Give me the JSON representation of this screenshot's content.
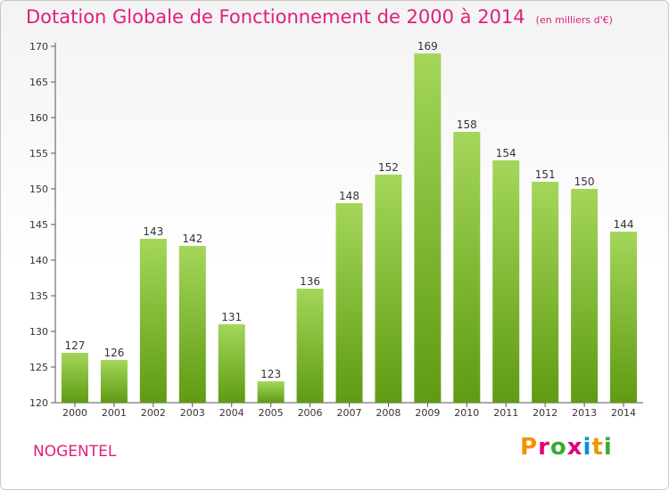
{
  "title": "Dotation Globale de Fonctionnement de 2000 à 2014",
  "unit": "(en milliers d'€)",
  "commune": "NOGENTEL",
  "logo_text": "Proxiti",
  "colors": {
    "title": "#e0207a",
    "bar_top": "#a4d65a",
    "bar_bottom": "#5f9b12"
  },
  "chart_data": {
    "type": "bar",
    "title": "Dotation Globale de Fonctionnement de 2000 à 2014",
    "xlabel": "",
    "ylabel": "",
    "ylim": [
      120,
      170
    ],
    "yticks": [
      120,
      125,
      130,
      135,
      140,
      145,
      150,
      155,
      160,
      165,
      170
    ],
    "grid": false,
    "categories": [
      "2000",
      "2001",
      "2002",
      "2003",
      "2004",
      "2005",
      "2006",
      "2007",
      "2008",
      "2009",
      "2010",
      "2011",
      "2012",
      "2013",
      "2014"
    ],
    "values": [
      127,
      126,
      143,
      142,
      131,
      123,
      136,
      148,
      152,
      169,
      158,
      154,
      151,
      150,
      144
    ]
  }
}
